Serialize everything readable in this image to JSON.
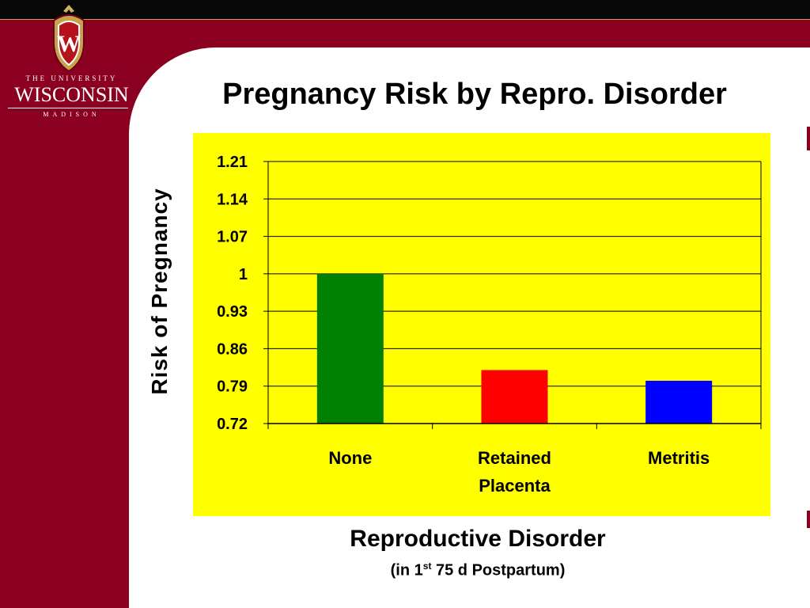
{
  "logo": {
    "line1": "THE UNIVERSITY",
    "line2": "WISCONSIN",
    "line3": "MADISON",
    "crest_letter": "W"
  },
  "slide": {
    "title": "Pregnancy Risk by Repro. Disorder",
    "xaxis_title": "Reproductive Disorder",
    "xaxis_sub_prefix": "(in 1",
    "xaxis_sub_sup": "st",
    "xaxis_sub_suffix": " 75 d Postpartum)"
  },
  "colors": {
    "brand_red": "#8b0020",
    "chart_background": "#ffff00",
    "none": "#008000",
    "retained_placenta": "#ff0000",
    "metritis": "#0000ff"
  },
  "chart_data": {
    "type": "bar",
    "title": "",
    "xlabel": "Reproductive Disorder",
    "ylabel": "Risk of Pregnancy",
    "categories": [
      "None",
      "Retained Placenta",
      "Metritis"
    ],
    "category_lines": [
      [
        "None"
      ],
      [
        "Retained",
        "Placenta"
      ],
      [
        "Metritis"
      ]
    ],
    "values": [
      1.0,
      0.82,
      0.8
    ],
    "bar_colors": [
      "#008000",
      "#ff0000",
      "#0000ff"
    ],
    "ylim": [
      0.72,
      1.21
    ],
    "yticks": [
      "0.72",
      "0.79",
      "0.86",
      "0.93",
      "1",
      "1.07",
      "1.14",
      "1.21"
    ],
    "grid": true,
    "legend": "none"
  }
}
